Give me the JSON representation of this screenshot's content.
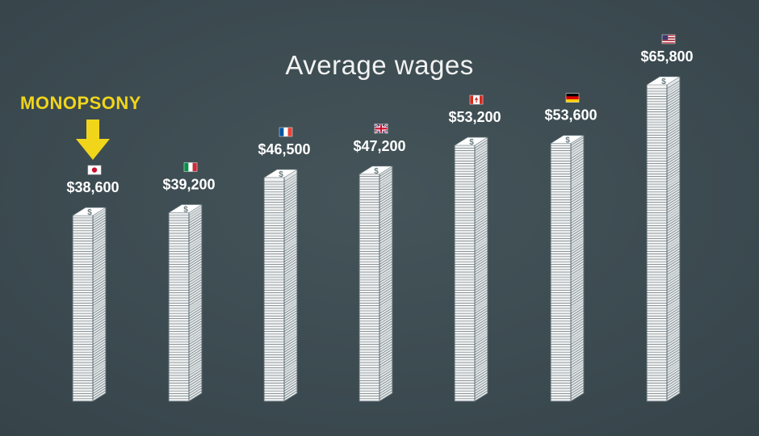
{
  "chart_data": {
    "type": "bar",
    "title": "Average wages",
    "categories": [
      "Japan",
      "Italy",
      "France",
      "United Kingdom",
      "Canada",
      "Germany",
      "United States"
    ],
    "values": [
      38600,
      39200,
      46500,
      47200,
      53200,
      53600,
      65800
    ],
    "value_labels": [
      "$38,600",
      "$39,200",
      "$46,500",
      "$47,200",
      "$53,200",
      "$53,600",
      "$65,800"
    ],
    "flags": [
      "jp-flag-icon",
      "it-flag-icon",
      "fr-flag-icon",
      "gb-flag-icon",
      "ca-flag-icon",
      "de-flag-icon",
      "us-flag-icon"
    ],
    "bar_style": "stacked-banknote-towers",
    "annotation": {
      "text": "MONOPSONY",
      "target": "Japan",
      "color": "#f1d51b"
    },
    "xlabel": "",
    "ylabel": "",
    "ylim": [
      0,
      65800
    ],
    "grid": false,
    "legend": "none"
  },
  "colors": {
    "background": "#3d4c52",
    "title_text": "#f2f2f2",
    "value_text": "#ffffff",
    "callout": "#f1d51b",
    "stack_face": "#f3f3f3",
    "stack_line": "#6a7a80",
    "stack_band": "#b9c2c5"
  }
}
